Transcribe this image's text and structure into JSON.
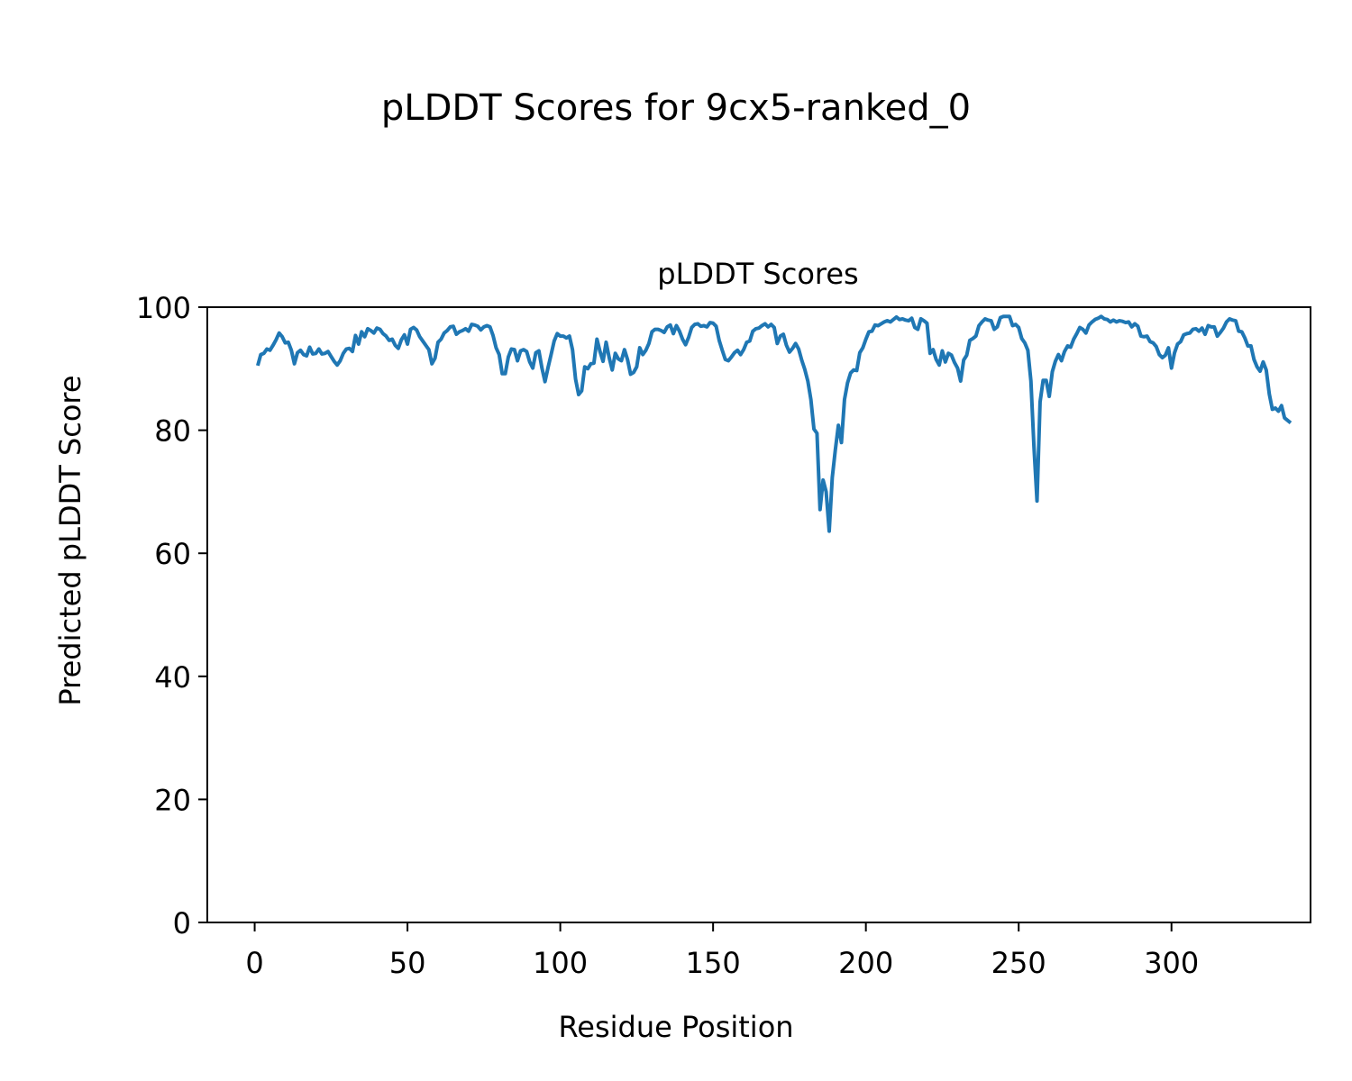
{
  "figure": {
    "suptitle": "pLDDT Scores for 9cx5-ranked_0"
  },
  "chart_data": {
    "type": "line",
    "title": "pLDDT Scores",
    "xlabel": "Residue Position",
    "ylabel": "Predicted pLDDT Score",
    "xlim": [
      -15.5,
      345.5
    ],
    "ylim": [
      0,
      100
    ],
    "xticks": [
      0,
      50,
      100,
      150,
      200,
      250,
      300
    ],
    "yticks": [
      0,
      20,
      40,
      60,
      80,
      100
    ],
    "line_color": "#1f77b4",
    "grid": false,
    "legend": "none",
    "x_start": 1,
    "y": [
      90.5,
      92.3,
      92.5,
      93.2,
      93.0,
      93.8,
      94.7,
      95.8,
      95.2,
      94.2,
      94.3,
      93.0,
      90.8,
      92.6,
      93.0,
      92.3,
      92.1,
      93.5,
      92.4,
      92.5,
      93.2,
      92.4,
      92.5,
      92.8,
      92.0,
      91.2,
      90.6,
      91.3,
      92.5,
      93.2,
      93.3,
      92.8,
      95.4,
      94.0,
      96.0,
      95.2,
      96.5,
      96.2,
      95.8,
      96.6,
      96.4,
      95.7,
      95.3,
      94.6,
      94.8,
      93.8,
      93.3,
      94.7,
      95.5,
      94.0,
      96.4,
      96.7,
      96.3,
      95.2,
      94.5,
      93.8,
      93.1,
      90.8,
      91.7,
      94.3,
      94.8,
      95.8,
      96.2,
      96.8,
      96.9,
      95.6,
      96.0,
      96.2,
      96.5,
      96.1,
      97.2,
      97.1,
      96.9,
      96.3,
      96.8,
      97.0,
      96.8,
      95.4,
      93.4,
      92.3,
      89.2,
      89.2,
      91.9,
      93.2,
      93.1,
      91.3,
      92.9,
      93.1,
      92.8,
      91.1,
      90.1,
      92.6,
      92.9,
      90.1,
      87.9,
      90.2,
      92.3,
      94.5,
      95.7,
      95.3,
      95.3,
      95.0,
      95.3,
      93.1,
      88.3,
      85.8,
      86.4,
      90.3,
      90.0,
      90.8,
      90.9,
      94.8,
      92.8,
      91.2,
      94.3,
      91.8,
      89.8,
      92.5,
      91.6,
      91.3,
      93.1,
      91.5,
      89.1,
      89.4,
      90.3,
      93.4,
      92.3,
      93.0,
      94.1,
      96.0,
      96.4,
      96.4,
      96.2,
      95.9,
      96.8,
      97.1,
      95.7,
      97.0,
      96.1,
      94.8,
      93.9,
      95.1,
      96.7,
      97.2,
      97.3,
      96.9,
      97.0,
      96.8,
      97.5,
      97.4,
      96.9,
      94.6,
      93.0,
      91.5,
      91.3,
      91.9,
      92.6,
      93.0,
      92.3,
      93.1,
      94.3,
      94.5,
      96.1,
      96.5,
      96.6,
      97.0,
      97.3,
      96.8,
      97.2,
      96.7,
      94.1,
      95.3,
      95.6,
      93.8,
      92.7,
      93.3,
      94.1,
      93.2,
      91.4,
      89.9,
      88.0,
      85.0,
      80.2,
      79.5,
      67.1,
      71.9,
      70.0,
      63.6,
      72.3,
      76.8,
      80.8,
      78.0,
      85.0,
      87.7,
      89.3,
      89.8,
      89.7,
      92.6,
      93.4,
      94.8,
      96.0,
      96.1,
      97.1,
      97.0,
      97.3,
      97.6,
      97.8,
      97.6,
      98.0,
      98.4,
      98.0,
      98.1,
      97.9,
      97.8,
      98.2,
      96.7,
      96.4,
      98.1,
      97.8,
      97.4,
      92.5,
      93.1,
      91.5,
      90.6,
      92.9,
      91.1,
      92.5,
      92.2,
      91.0,
      90.1,
      88.0,
      91.4,
      92.2,
      94.6,
      94.9,
      95.3,
      97.0,
      97.6,
      98.1,
      97.9,
      97.8,
      96.4,
      96.8,
      98.3,
      98.5,
      98.5,
      98.5,
      97.0,
      97.2,
      96.7,
      94.9,
      94.2,
      93.0,
      88.0,
      77.3,
      68.5,
      84.6,
      88.1,
      88.1,
      85.5,
      89.5,
      91.2,
      92.3,
      91.3,
      92.8,
      93.7,
      93.5,
      94.8,
      95.7,
      96.7,
      96.4,
      95.8,
      97.1,
      97.6,
      98.0,
      98.2,
      98.5,
      98.1,
      98.0,
      97.6,
      97.9,
      97.6,
      97.8,
      97.7,
      97.5,
      97.6,
      96.8,
      97.3,
      96.9,
      95.3,
      95.2,
      95.3,
      94.4,
      94.2,
      93.6,
      92.3,
      91.8,
      92.2,
      93.4,
      90.1,
      92.6,
      94.0,
      94.4,
      95.5,
      95.7,
      95.8,
      96.4,
      96.5,
      96.1,
      96.6,
      95.6,
      97.0,
      96.8,
      96.8,
      95.3,
      95.9,
      96.6,
      97.6,
      98.1,
      97.9,
      97.8,
      96.1,
      96.0,
      95.0,
      93.7,
      93.7,
      91.5,
      90.3,
      89.6,
      91.1,
      89.8,
      85.9,
      83.4,
      83.6,
      83.1,
      84.0,
      82.0,
      81.6,
      81.2
    ]
  }
}
